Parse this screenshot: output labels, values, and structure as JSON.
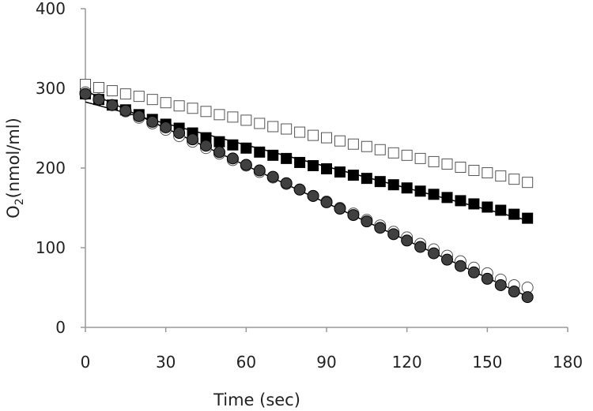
{
  "chart_data": {
    "type": "scatter",
    "title": "",
    "xlabel": "Time (sec)",
    "ylabel_main": "O",
    "ylabel_sub": "2",
    "ylabel_rest": "(nmol/ml)",
    "xlim": [
      0,
      180
    ],
    "ylim": [
      0,
      400
    ],
    "xticks": [
      0,
      30,
      60,
      90,
      120,
      150,
      180
    ],
    "yticks": [
      0,
      100,
      200,
      300,
      400
    ],
    "grid": false,
    "legend": "none",
    "series": [
      {
        "marker": "square",
        "filled": false,
        "trendline": false,
        "x": [
          0,
          5,
          10,
          15,
          20,
          25,
          30,
          35,
          40,
          45,
          50,
          55,
          60,
          65,
          70,
          75,
          80,
          85,
          90,
          95,
          100,
          105,
          110,
          115,
          120,
          125,
          130,
          135,
          140,
          145,
          150,
          155,
          160,
          165
        ],
        "y": [
          305,
          301,
          297,
          293,
          290,
          286,
          282,
          278,
          275,
          271,
          267,
          264,
          260,
          256,
          252,
          249,
          245,
          241,
          238,
          234,
          230,
          227,
          223,
          219,
          216,
          212,
          208,
          205,
          201,
          197,
          194,
          190,
          186,
          182
        ]
      },
      {
        "marker": "square",
        "filled": true,
        "trendline": true,
        "x": [
          0,
          5,
          10,
          15,
          20,
          25,
          30,
          35,
          40,
          45,
          50,
          55,
          60,
          65,
          70,
          75,
          80,
          85,
          90,
          95,
          100,
          105,
          110,
          115,
          120,
          125,
          130,
          135,
          140,
          145,
          150,
          155,
          160,
          165
        ],
        "y": [
          293,
          286,
          279,
          273,
          267,
          261,
          255,
          250,
          244,
          238,
          233,
          229,
          225,
          220,
          216,
          212,
          207,
          203,
          199,
          195,
          191,
          187,
          183,
          179,
          175,
          171,
          167,
          163,
          159,
          155,
          151,
          147,
          142,
          137
        ]
      },
      {
        "marker": "circle",
        "filled": false,
        "trendline": false,
        "x": [
          0,
          5,
          10,
          15,
          20,
          25,
          30,
          35,
          40,
          45,
          50,
          55,
          60,
          65,
          70,
          75,
          80,
          85,
          90,
          95,
          100,
          105,
          110,
          115,
          120,
          125,
          130,
          135,
          140,
          145,
          150,
          155,
          160,
          165
        ],
        "y": [
          295,
          286,
          279,
          271,
          263,
          256,
          248,
          240,
          233,
          225,
          218,
          210,
          203,
          195,
          188,
          180,
          173,
          165,
          158,
          150,
          143,
          135,
          128,
          120,
          113,
          105,
          98,
          90,
          83,
          75,
          68,
          60,
          53,
          50
        ]
      },
      {
        "marker": "circle",
        "filled": true,
        "trendline": true,
        "x": [
          0,
          5,
          10,
          15,
          20,
          25,
          30,
          35,
          40,
          45,
          50,
          55,
          60,
          65,
          70,
          75,
          80,
          85,
          90,
          95,
          100,
          105,
          110,
          115,
          120,
          125,
          130,
          135,
          140,
          145,
          150,
          155,
          160,
          165
        ],
        "y": [
          293,
          286,
          279,
          272,
          265,
          258,
          251,
          244,
          236,
          228,
          220,
          212,
          204,
          197,
          189,
          181,
          173,
          165,
          157,
          149,
          141,
          133,
          125,
          117,
          109,
          101,
          93,
          85,
          77,
          69,
          61,
          53,
          45,
          38
        ]
      }
    ]
  }
}
